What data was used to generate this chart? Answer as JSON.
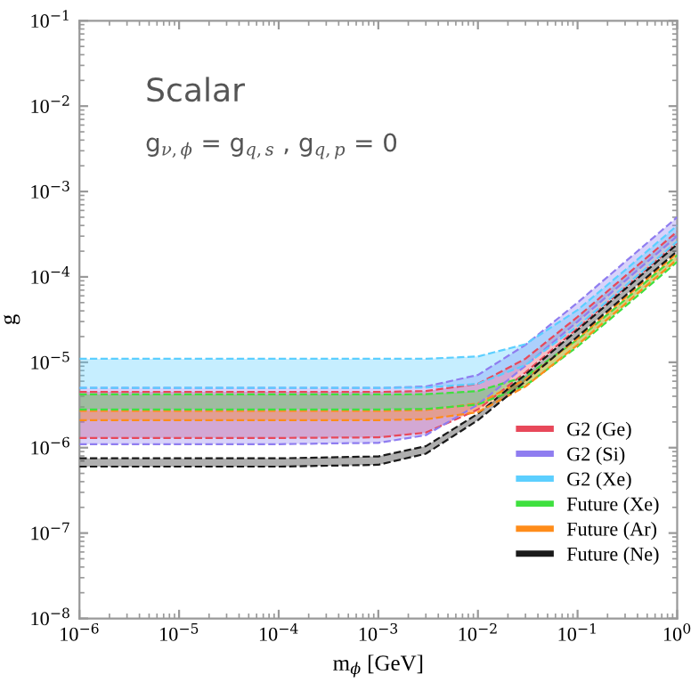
{
  "chart_data": {
    "type": "line",
    "xlabel": "m$_{ϕ}$ [GeV]",
    "ylabel": "g",
    "log": "xy",
    "annotations": [
      "Scalar",
      "g$_{ν,ϕ}$ = g$_{q,s}$ , g$_{q,p}$ = 0"
    ],
    "x": [
      1e-06,
      0.0001,
      0.001,
      0.003,
      0.01,
      0.03,
      0.1,
      0.3,
      1
    ],
    "xlim": [
      1e-06,
      1
    ],
    "ylim": [
      1e-08,
      0.1
    ],
    "xticks": [
      {
        "value": 1e-06,
        "label": "10$^{−6}$"
      },
      {
        "value": 1e-05,
        "label": "10$^{−5}$"
      },
      {
        "value": 0.0001,
        "label": "10$^{−4}$"
      },
      {
        "value": 0.001,
        "label": "10$^{−3}$"
      },
      {
        "value": 0.01,
        "label": "10$^{−2}$"
      },
      {
        "value": 0.1,
        "label": "10$^{−1}$"
      },
      {
        "value": 1,
        "label": "10$^{0}$"
      }
    ],
    "yticks": [
      {
        "value": 1e-08,
        "label": "10$^{−8}$"
      },
      {
        "value": 1e-07,
        "label": "10$^{−7}$"
      },
      {
        "value": 1e-06,
        "label": "10$^{−6}$"
      },
      {
        "value": 1e-05,
        "label": "10$^{−5}$"
      },
      {
        "value": 0.0001,
        "label": "10$^{−4}$"
      },
      {
        "value": 0.001,
        "label": "10$^{−3}$"
      },
      {
        "value": 0.01,
        "label": "10$^{−2}$"
      },
      {
        "value": 0.1,
        "label": "10$^{−1}$"
      }
    ],
    "line_style": "dashed",
    "legend": "right",
    "grid": false,
    "series": [
      {
        "name": "G2 (Ge)",
        "color": "#e8485a",
        "values": [
          1.3e-06,
          1.3e-06,
          1.32e-06,
          1.5e-06,
          2.8e-06,
          7.6e-06,
          2.5e-05,
          7.5e-05,
          0.00025
        ],
        "lower": [
          1.3e-06,
          1.3e-06,
          1.32e-06,
          1.5e-06,
          2.8e-06,
          7.6e-06,
          2.5e-05,
          7.5e-05,
          0.00025
        ],
        "upper": [
          4.5e-06,
          4.5e-06,
          4.5e-06,
          4.6e-06,
          5.6e-06,
          1.1e-05,
          3.4e-05,
          0.000102,
          0.00034
        ]
      },
      {
        "color": "#e8485a",
        "values": [
          4.5e-06,
          4.5e-06,
          4.5e-06,
          4.6e-06,
          5.6e-06,
          1.1e-05,
          3.4e-05,
          0.000102,
          0.00034
        ]
      },
      {
        "color": "#8f7df0",
        "values": [
          5e-06,
          5e-06,
          5e-06,
          5.2e-06,
          7.1e-06,
          1.6e-05,
          5e-05,
          0.00015,
          0.0005
        ]
      },
      {
        "color": "#5ccfff",
        "values": [
          1.1e-05,
          1.1e-05,
          1.1e-05,
          1.1e-05,
          1.17e-05,
          1.63e-05,
          4.1e-05,
          0.00012,
          0.0004
        ]
      },
      {
        "color": "#3fe03f",
        "values": [
          4.2e-06,
          4.2e-06,
          4.2e-06,
          4.23e-06,
          4.6e-06,
          6.8e-06,
          1.85e-05,
          5.4e-05,
          0.00018
        ]
      },
      {
        "color": "#ff8c1a",
        "values": [
          2.7e-06,
          2.7e-06,
          2.7e-06,
          2.76e-06,
          3.3e-06,
          6.3e-06,
          1.9e-05,
          5.7e-05,
          0.00019
        ]
      },
      {
        "color": "#1a1a1a",
        "values": [
          7.5e-07,
          7.5e-07,
          7.9e-07,
          1.04e-06,
          2.5e-06,
          7.2e-06,
          2.4e-05,
          7.2e-05,
          0.00024
        ]
      },
      {
        "name": "G2 (Si)",
        "color": "#8f7df0",
        "values": [
          1.1e-06,
          1.1e-06,
          1.14e-06,
          1.4e-06,
          3.2e-06,
          9.1e-06,
          3e-05,
          9e-05,
          0.0003
        ],
        "lower": [
          1.1e-06,
          1.1e-06,
          1.14e-06,
          1.4e-06,
          3.2e-06,
          9.1e-06,
          3e-05,
          9e-05,
          0.0003
        ],
        "upper": [
          5e-06,
          5e-06,
          5e-06,
          5.2e-06,
          7.1e-06,
          1.6e-05,
          5e-05,
          0.00015,
          0.0005
        ]
      },
      {
        "name": "G2 (Xe)",
        "color": "#5ccfff",
        "values": [
          5e-06,
          5e-06,
          5e-06,
          5.06e-06,
          5.6e-06,
          9.3e-06,
          2.65e-05,
          7.8e-05,
          0.00026
        ],
        "lower": [
          5e-06,
          5e-06,
          5e-06,
          5.06e-06,
          5.6e-06,
          9.3e-06,
          2.65e-05,
          7.8e-05,
          0.00026
        ],
        "upper": [
          1.1e-05,
          1.1e-05,
          1.1e-05,
          1.1e-05,
          1.17e-05,
          1.63e-05,
          4.1e-05,
          0.00012,
          0.0004
        ]
      },
      {
        "name": "Future (Xe)",
        "color": "#3fe03f",
        "values": [
          2.8e-06,
          2.8e-06,
          2.8e-06,
          2.84e-06,
          3.2e-06,
          5.3e-06,
          1.53e-05,
          4.5e-05,
          0.00015
        ],
        "lower": [
          2.8e-06,
          2.8e-06,
          2.8e-06,
          2.84e-06,
          3.2e-06,
          5.3e-06,
          1.53e-05,
          4.5e-05,
          0.00015
        ],
        "upper": [
          4.2e-06,
          4.2e-06,
          4.2e-06,
          4.23e-06,
          4.6e-06,
          6.8e-06,
          1.85e-05,
          5.4e-05,
          0.00018
        ]
      },
      {
        "name": "Future (Ar)",
        "color": "#ff8c1a",
        "values": [
          2.1e-06,
          2.1e-06,
          2.1e-06,
          2.15e-06,
          2.6e-06,
          5.2e-06,
          1.6e-05,
          4.8e-05,
          0.00016
        ],
        "lower": [
          2.1e-06,
          2.1e-06,
          2.1e-06,
          2.15e-06,
          2.6e-06,
          5.2e-06,
          1.6e-05,
          4.8e-05,
          0.00016
        ],
        "upper": [
          2.7e-06,
          2.7e-06,
          2.7e-06,
          2.76e-06,
          3.3e-06,
          6.3e-06,
          1.9e-05,
          5.7e-05,
          0.00019
        ]
      },
      {
        "name": "Future (Ne)",
        "color": "#1a1a1a",
        "values": [
          6e-07,
          6e-07,
          6.3e-07,
          8.5e-07,
          2.1e-06,
          6e-06,
          2e-05,
          6e-05,
          0.0002
        ],
        "lower": [
          6e-07,
          6e-07,
          6.3e-07,
          8.5e-07,
          2.1e-06,
          6e-06,
          2e-05,
          6e-05,
          0.0002
        ],
        "upper": [
          7.5e-07,
          7.5e-07,
          7.9e-07,
          1.04e-06,
          2.5e-06,
          7.2e-06,
          2.4e-05,
          7.2e-05,
          0.00024
        ]
      }
    ]
  }
}
